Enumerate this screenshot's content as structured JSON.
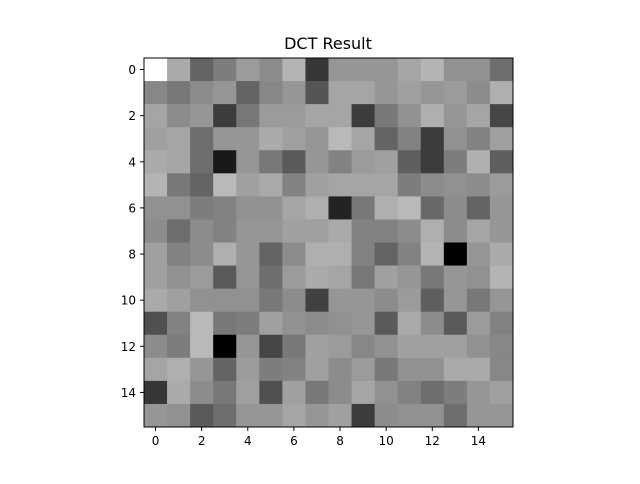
{
  "chart_data": {
    "type": "heatmap",
    "title": "DCT Result",
    "xlabel": "",
    "ylabel": "",
    "colormap": "gray",
    "x_ticks": [
      0,
      2,
      4,
      6,
      8,
      10,
      12,
      14
    ],
    "y_ticks": [
      0,
      2,
      4,
      6,
      8,
      10,
      12,
      14
    ],
    "x_tick_labels": [
      "0",
      "2",
      "4",
      "6",
      "8",
      "10",
      "12",
      "14"
    ],
    "y_tick_labels": [
      "0",
      "2",
      "4",
      "6",
      "8",
      "10",
      "12",
      "14"
    ],
    "xlim": [
      -0.5,
      15.5
    ],
    "ylim": [
      15.5,
      -0.5
    ],
    "grid": false,
    "colorbar": false,
    "note_values": "gray intensity 0 (black) to 255 (white)",
    "values": [
      [
        255,
        170,
        100,
        125,
        155,
        140,
        180,
        55,
        150,
        150,
        150,
        165,
        180,
        145,
        145,
        110
      ],
      [
        135,
        120,
        140,
        150,
        100,
        135,
        150,
        85,
        165,
        165,
        150,
        160,
        150,
        155,
        140,
        175
      ],
      [
        165,
        140,
        150,
        60,
        120,
        155,
        155,
        165,
        165,
        60,
        120,
        145,
        175,
        150,
        165,
        70
      ],
      [
        160,
        165,
        110,
        150,
        150,
        170,
        160,
        150,
        185,
        165,
        100,
        130,
        60,
        145,
        130,
        160
      ],
      [
        170,
        165,
        110,
        25,
        150,
        120,
        90,
        150,
        130,
        155,
        160,
        95,
        60,
        125,
        175,
        95
      ],
      [
        180,
        120,
        100,
        185,
        160,
        170,
        130,
        160,
        165,
        165,
        165,
        125,
        140,
        145,
        140,
        155
      ],
      [
        145,
        145,
        125,
        130,
        145,
        145,
        165,
        175,
        35,
        120,
        175,
        185,
        105,
        140,
        100,
        150
      ],
      [
        140,
        110,
        140,
        130,
        150,
        150,
        160,
        160,
        170,
        130,
        130,
        140,
        175,
        140,
        165,
        150
      ],
      [
        160,
        130,
        140,
        175,
        150,
        100,
        140,
        175,
        175,
        130,
        100,
        130,
        180,
        0,
        150,
        170
      ],
      [
        160,
        145,
        155,
        90,
        150,
        110,
        155,
        170,
        165,
        120,
        160,
        150,
        120,
        150,
        145,
        180
      ],
      [
        170,
        160,
        145,
        145,
        145,
        120,
        140,
        65,
        150,
        150,
        140,
        155,
        95,
        150,
        120,
        150
      ],
      [
        80,
        130,
        185,
        120,
        125,
        160,
        145,
        140,
        145,
        150,
        90,
        170,
        140,
        90,
        155,
        130
      ],
      [
        140,
        125,
        185,
        0,
        150,
        70,
        120,
        160,
        155,
        135,
        145,
        160,
        160,
        160,
        145,
        135
      ],
      [
        165,
        175,
        150,
        100,
        155,
        125,
        130,
        160,
        140,
        155,
        120,
        145,
        145,
        170,
        170,
        135
      ],
      [
        55,
        170,
        140,
        120,
        160,
        80,
        160,
        120,
        140,
        165,
        145,
        130,
        110,
        125,
        150,
        160
      ],
      [
        150,
        145,
        90,
        110,
        150,
        150,
        165,
        150,
        160,
        60,
        140,
        145,
        145,
        110,
        150,
        150
      ]
    ]
  }
}
